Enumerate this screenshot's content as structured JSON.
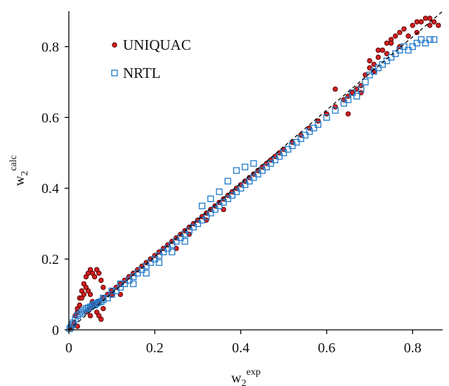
{
  "chart_data": {
    "type": "scatter",
    "title": "",
    "xlabel_base": "w",
    "xlabel_sub": "2",
    "xlabel_sup": "exp",
    "ylabel_base": "w",
    "ylabel_sub": "2",
    "ylabel_sup": "calc",
    "xlim": [
      0,
      0.87
    ],
    "ylim": [
      0,
      0.9
    ],
    "x_ticks": [
      0,
      0.2,
      0.4,
      0.6,
      0.8
    ],
    "x_tick_labels": [
      "0",
      "0.2",
      "0.4",
      "0.6",
      "0.8"
    ],
    "y_ticks": [
      0,
      0.2,
      0.4,
      0.6,
      0.8
    ],
    "y_tick_labels": [
      "0",
      "0.2",
      "0.4",
      "0.6",
      "0.8"
    ],
    "grid": false,
    "legend_position": "top-left",
    "diagonal_line": {
      "style": "dashed",
      "from": [
        0,
        0
      ],
      "to": [
        0.87,
        0.9
      ],
      "color": "#000000"
    },
    "series": [
      {
        "name": "UNIQUAC",
        "marker": "filled-circle",
        "fill_color": "#d42020",
        "edge_color": "#5a0000",
        "x": [
          0.003,
          0.008,
          0.012,
          0.015,
          0.02,
          0.025,
          0.03,
          0.035,
          0.04,
          0.045,
          0.05,
          0.055,
          0.06,
          0.065,
          0.07,
          0.075,
          0.08,
          0.02,
          0.025,
          0.03,
          0.035,
          0.04,
          0.045,
          0.05,
          0.055,
          0.06,
          0.065,
          0.07,
          0.075,
          0.04,
          0.05,
          0.06,
          0.07,
          0.08,
          0.09,
          0.1,
          0.11,
          0.12,
          0.13,
          0.14,
          0.15,
          0.16,
          0.17,
          0.18,
          0.19,
          0.2,
          0.21,
          0.22,
          0.23,
          0.24,
          0.25,
          0.26,
          0.27,
          0.28,
          0.29,
          0.3,
          0.31,
          0.32,
          0.33,
          0.34,
          0.35,
          0.36,
          0.37,
          0.38,
          0.39,
          0.4,
          0.41,
          0.42,
          0.43,
          0.44,
          0.45,
          0.46,
          0.47,
          0.48,
          0.49,
          0.5,
          0.52,
          0.54,
          0.56,
          0.58,
          0.6,
          0.62,
          0.64,
          0.65,
          0.66,
          0.67,
          0.68,
          0.69,
          0.7,
          0.71,
          0.72,
          0.73,
          0.74,
          0.75,
          0.76,
          0.77,
          0.78,
          0.8,
          0.81,
          0.82,
          0.83,
          0.84,
          0.85,
          0.86,
          0.65,
          0.62,
          0.68,
          0.71,
          0.74,
          0.77,
          0.79,
          0.81,
          0.84,
          0.7,
          0.72,
          0.75,
          0.02,
          0.05,
          0.08,
          0.1,
          0.12,
          0.14,
          0.25,
          0.28,
          0.32,
          0.36
        ],
        "y": [
          0.004,
          0.01,
          0.02,
          0.04,
          0.06,
          0.09,
          0.11,
          0.13,
          0.15,
          0.16,
          0.17,
          0.16,
          0.15,
          0.17,
          0.16,
          0.14,
          0.12,
          0.05,
          0.07,
          0.09,
          0.1,
          0.12,
          0.11,
          0.1,
          0.08,
          0.07,
          0.05,
          0.04,
          0.03,
          0.05,
          0.06,
          0.07,
          0.08,
          0.09,
          0.1,
          0.11,
          0.12,
          0.13,
          0.14,
          0.15,
          0.16,
          0.17,
          0.18,
          0.19,
          0.2,
          0.21,
          0.22,
          0.23,
          0.24,
          0.25,
          0.26,
          0.27,
          0.28,
          0.29,
          0.3,
          0.31,
          0.32,
          0.33,
          0.34,
          0.35,
          0.36,
          0.37,
          0.38,
          0.39,
          0.4,
          0.41,
          0.42,
          0.43,
          0.44,
          0.45,
          0.46,
          0.47,
          0.48,
          0.49,
          0.5,
          0.51,
          0.53,
          0.55,
          0.57,
          0.59,
          0.61,
          0.63,
          0.65,
          0.66,
          0.67,
          0.68,
          0.69,
          0.72,
          0.74,
          0.75,
          0.77,
          0.79,
          0.81,
          0.82,
          0.83,
          0.84,
          0.85,
          0.86,
          0.87,
          0.87,
          0.88,
          0.88,
          0.87,
          0.86,
          0.61,
          0.68,
          0.67,
          0.73,
          0.78,
          0.8,
          0.83,
          0.84,
          0.86,
          0.76,
          0.79,
          0.81,
          0.01,
          0.04,
          0.06,
          0.1,
          0.1,
          0.15,
          0.23,
          0.27,
          0.31,
          0.34
        ]
      },
      {
        "name": "NRTL",
        "marker": "open-square",
        "fill_color": "none",
        "edge_color": "#1f78c8",
        "x": [
          0.002,
          0.005,
          0.008,
          0.01,
          0.015,
          0.02,
          0.025,
          0.03,
          0.035,
          0.04,
          0.045,
          0.05,
          0.055,
          0.06,
          0.065,
          0.07,
          0.075,
          0.08,
          0.09,
          0.1,
          0.11,
          0.12,
          0.13,
          0.14,
          0.15,
          0.16,
          0.17,
          0.18,
          0.19,
          0.2,
          0.21,
          0.22,
          0.23,
          0.24,
          0.25,
          0.26,
          0.27,
          0.28,
          0.29,
          0.3,
          0.31,
          0.32,
          0.33,
          0.34,
          0.35,
          0.36,
          0.37,
          0.38,
          0.39,
          0.4,
          0.41,
          0.42,
          0.43,
          0.44,
          0.45,
          0.46,
          0.47,
          0.48,
          0.49,
          0.5,
          0.51,
          0.52,
          0.53,
          0.54,
          0.55,
          0.56,
          0.57,
          0.58,
          0.6,
          0.62,
          0.64,
          0.65,
          0.66,
          0.67,
          0.68,
          0.69,
          0.7,
          0.71,
          0.72,
          0.73,
          0.74,
          0.75,
          0.76,
          0.77,
          0.78,
          0.79,
          0.8,
          0.81,
          0.82,
          0.83,
          0.84,
          0.85,
          0.31,
          0.33,
          0.35,
          0.37,
          0.39,
          0.41,
          0.43,
          0.15,
          0.18,
          0.21,
          0.24,
          0.27,
          0.06,
          0.08,
          0.1,
          0.12
        ],
        "y": [
          0.003,
          0.008,
          0.015,
          0.02,
          0.03,
          0.04,
          0.045,
          0.05,
          0.055,
          0.06,
          0.062,
          0.065,
          0.07,
          0.072,
          0.075,
          0.078,
          0.08,
          0.085,
          0.09,
          0.1,
          0.11,
          0.12,
          0.13,
          0.14,
          0.15,
          0.16,
          0.17,
          0.18,
          0.19,
          0.2,
          0.21,
          0.22,
          0.23,
          0.24,
          0.25,
          0.26,
          0.27,
          0.28,
          0.29,
          0.3,
          0.31,
          0.32,
          0.33,
          0.34,
          0.35,
          0.36,
          0.37,
          0.38,
          0.39,
          0.4,
          0.41,
          0.42,
          0.43,
          0.44,
          0.45,
          0.46,
          0.47,
          0.48,
          0.49,
          0.5,
          0.51,
          0.52,
          0.53,
          0.54,
          0.55,
          0.56,
          0.57,
          0.58,
          0.6,
          0.62,
          0.64,
          0.65,
          0.67,
          0.66,
          0.68,
          0.7,
          0.72,
          0.73,
          0.74,
          0.75,
          0.76,
          0.77,
          0.78,
          0.79,
          0.8,
          0.79,
          0.8,
          0.81,
          0.82,
          0.81,
          0.82,
          0.82,
          0.35,
          0.37,
          0.39,
          0.42,
          0.45,
          0.46,
          0.47,
          0.13,
          0.16,
          0.19,
          0.22,
          0.25,
          0.07,
          0.09,
          0.11,
          0.13
        ]
      }
    ]
  }
}
